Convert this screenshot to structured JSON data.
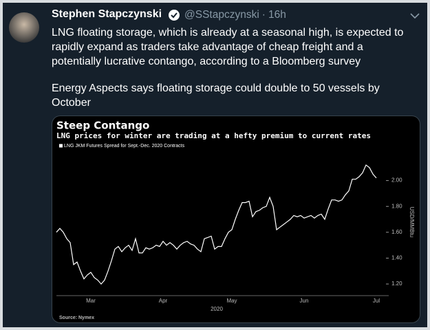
{
  "tweet": {
    "author": "Stephen Stapczynski",
    "handle": "@SStapczynski",
    "separator": "·",
    "time": "16h",
    "paragraphs": [
      "LNG floating storage, which is already at a seasonal high, is expected to rapidly expand as traders take advantage of cheap freight and a potentially lucrative contango, according to a Bloomberg survey",
      "Energy Aspects says floating storage could double to 50 vessels by October"
    ]
  },
  "chart_data": {
    "type": "line",
    "title": "Steep Contango",
    "subtitle": "LNG prices for winter are trading at a hefty premium to current rates",
    "ylabel": "USD/MMBtu",
    "xlabel": "2020",
    "source": "Source: Nymex",
    "categories": [
      null,
      null,
      null,
      null,
      null,
      null,
      null,
      null,
      null,
      null,
      "Mar",
      null,
      null,
      null,
      null,
      null,
      null,
      null,
      null,
      null,
      null,
      null,
      null,
      null,
      null,
      null,
      null,
      null,
      null,
      null,
      null,
      "Apr",
      null,
      null,
      null,
      null,
      null,
      null,
      null,
      null,
      null,
      null,
      null,
      null,
      null,
      null,
      null,
      null,
      null,
      null,
      null,
      "May",
      null,
      null,
      null,
      null,
      null,
      null,
      null,
      null,
      null,
      null,
      null,
      null,
      null,
      null,
      null,
      null,
      null,
      null,
      null,
      null,
      "Jun",
      null,
      null,
      null,
      null,
      null,
      null,
      null,
      null,
      null,
      null,
      null,
      null,
      null,
      null,
      null,
      null,
      null,
      null,
      null,
      null,
      "Jul"
    ],
    "series": [
      {
        "name": "LNG JKM Futures Spread for Sept.-Dec. 2020 Contracts",
        "color": "#ffffff",
        "values": [
          1.6,
          1.63,
          1.6,
          1.55,
          1.52,
          1.35,
          1.37,
          1.3,
          1.24,
          1.27,
          1.29,
          1.25,
          1.23,
          1.2,
          1.23,
          1.3,
          1.38,
          1.47,
          1.49,
          1.45,
          1.48,
          1.5,
          1.46,
          1.55,
          1.44,
          1.44,
          1.48,
          1.47,
          1.48,
          1.5,
          1.49,
          1.53,
          1.5,
          1.52,
          1.5,
          1.47,
          1.5,
          1.52,
          1.53,
          1.51,
          1.5,
          1.47,
          1.45,
          1.55,
          1.56,
          1.57,
          1.47,
          1.49,
          1.49,
          1.55,
          1.6,
          1.62,
          1.7,
          1.77,
          1.83,
          1.83,
          1.84,
          1.72,
          1.76,
          1.77,
          1.79,
          1.8,
          1.87,
          1.8,
          1.62,
          1.64,
          1.66,
          1.68,
          1.7,
          1.73,
          1.72,
          1.73,
          1.71,
          1.72,
          1.73,
          1.71,
          1.73,
          1.74,
          1.7,
          1.78,
          1.85,
          1.85,
          1.84,
          1.85,
          1.89,
          1.92,
          2.01,
          2.01,
          2.03,
          2.06,
          2.12,
          2.1,
          2.05,
          2.02
        ]
      }
    ],
    "ylim": [
      1.11,
      2.2
    ],
    "yticks": [
      {
        "value": 1.2,
        "label": "1.20"
      },
      {
        "value": 1.4,
        "label": "1.40"
      },
      {
        "value": 1.6,
        "label": "1.60"
      },
      {
        "value": 1.8,
        "label": "1.80"
      },
      {
        "value": 2.0,
        "label": "2.00"
      }
    ],
    "grid": false
  }
}
